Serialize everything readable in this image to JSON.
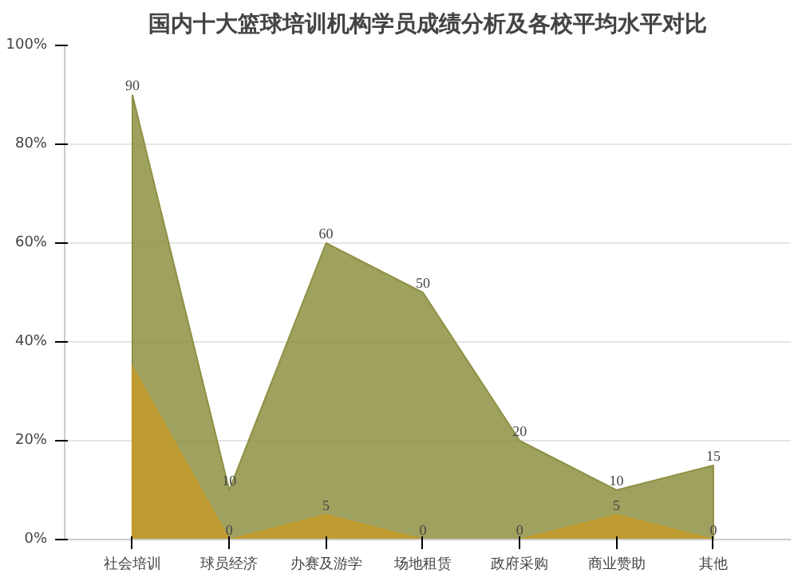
{
  "chart_data": {
    "type": "area",
    "title": "国内十大篮球培训机构学员成绩分析及各校平均水平对比",
    "categories": [
      "社会培训",
      "球员经济",
      "办赛及游学",
      "场地租赁",
      "政府采购",
      "商业赞助",
      "其他"
    ],
    "series": [
      {
        "color": "#8e9143",
        "values": [
          90,
          10,
          60,
          50,
          20,
          10,
          15
        ],
        "value_labels": [
          "90",
          "10",
          "60",
          "50",
          "20",
          "10",
          "15"
        ]
      },
      {
        "color": "#c39b2c",
        "values": [
          35,
          0,
          5,
          0,
          0,
          5,
          0
        ],
        "value_labels": [
          null,
          "0",
          "5",
          "0",
          "0",
          "5",
          "0"
        ]
      }
    ],
    "ylim": [
      0,
      100
    ],
    "yticks": [
      {
        "value": 0,
        "label": "0%"
      },
      {
        "value": 20,
        "label": "20%"
      },
      {
        "value": 40,
        "label": "40%"
      },
      {
        "value": 60,
        "label": "60%"
      },
      {
        "value": 80,
        "label": "80%"
      },
      {
        "value": 100,
        "label": "100%"
      }
    ],
    "grid": "y"
  }
}
